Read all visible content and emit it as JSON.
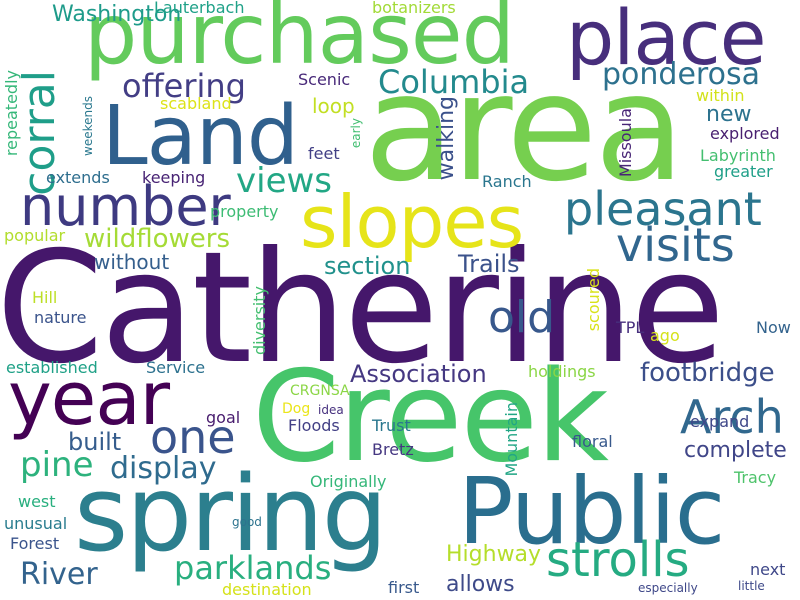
{
  "words": [
    {
      "text": "Catherine",
      "color": "#45176b"
    },
    {
      "text": "Creek",
      "color": "#46c56a"
    },
    {
      "text": "area",
      "color": "#76cf4f"
    },
    {
      "text": "spring",
      "color": "#2c7f8e"
    },
    {
      "text": "Public",
      "color": "#2a6e8e"
    },
    {
      "text": "purchased",
      "color": "#63cb5c"
    },
    {
      "text": "place",
      "color": "#472e7c"
    },
    {
      "text": "Land",
      "color": "#30608d"
    },
    {
      "text": "year",
      "color": "#440154"
    },
    {
      "text": "slopes",
      "color": "#e6e419"
    },
    {
      "text": "number",
      "color": "#3e3a81"
    },
    {
      "text": "pleasant",
      "color": "#2b758e"
    },
    {
      "text": "visits",
      "color": "#31668e"
    },
    {
      "text": "strolls",
      "color": "#25ab82"
    },
    {
      "text": "corral",
      "color": "#1f9e89"
    },
    {
      "text": "Arch",
      "color": "#31688e"
    },
    {
      "text": "one",
      "color": "#3a548c"
    },
    {
      "text": "Columbia",
      "color": "#238a8d"
    },
    {
      "text": "offering",
      "color": "#433e85"
    },
    {
      "text": "ponderosa",
      "color": "#2d718e"
    },
    {
      "text": "views",
      "color": "#22a785"
    },
    {
      "text": "wildflowers",
      "color": "#a5db36"
    },
    {
      "text": "pine",
      "color": "#2db27d"
    },
    {
      "text": "display",
      "color": "#2f6b8e"
    },
    {
      "text": "parklands",
      "color": "#29af7f"
    },
    {
      "text": "old",
      "color": "#38588c"
    },
    {
      "text": "footbridge",
      "color": "#3c4f8a"
    },
    {
      "text": "Association",
      "color": "#453882"
    },
    {
      "text": "River",
      "color": "#33638d"
    },
    {
      "text": "Trails",
      "color": "#3b528b"
    },
    {
      "text": "section",
      "color": "#21918c"
    },
    {
      "text": "built",
      "color": "#365d8d"
    },
    {
      "text": "complete",
      "color": "#404688"
    },
    {
      "text": "Washington",
      "color": "#1e9b8a"
    },
    {
      "text": "Highway",
      "color": "#b5de2b"
    },
    {
      "text": "allows",
      "color": "#3e4a89"
    },
    {
      "text": "new",
      "color": "#2c728e"
    },
    {
      "text": "walking",
      "color": "#3b518b"
    },
    {
      "text": "without",
      "color": "#355f8d"
    },
    {
      "text": "explored",
      "color": "#481f70"
    },
    {
      "text": "Labyrinth",
      "color": "#44bf70"
    },
    {
      "text": "loop",
      "color": "#c2df23"
    },
    {
      "text": "greater",
      "color": "#1f9f88"
    },
    {
      "text": "Missoula",
      "color": "#482576"
    },
    {
      "text": "Lauterbach",
      "color": "#1fa188"
    },
    {
      "text": "botanizers",
      "color": "#a2da37"
    },
    {
      "text": "Scenic",
      "color": "#482979"
    },
    {
      "text": "scabland",
      "color": "#dde318"
    },
    {
      "text": "within",
      "color": "#d2e21b"
    },
    {
      "text": "repeatedly",
      "color": "#35b779"
    },
    {
      "text": "weekends",
      "color": "#2a788e"
    },
    {
      "text": "early",
      "color": "#42be71"
    },
    {
      "text": "extends",
      "color": "#2e6e8e"
    },
    {
      "text": "keeping",
      "color": "#482374"
    },
    {
      "text": "feet",
      "color": "#424086"
    },
    {
      "text": "Ranch",
      "color": "#2a768e"
    },
    {
      "text": "property",
      "color": "#3dbc74"
    },
    {
      "text": "popular",
      "color": "#b2dd2d"
    },
    {
      "text": "diversity",
      "color": "#44bf70"
    },
    {
      "text": "scoured",
      "color": "#d8e219"
    },
    {
      "text": "Hill",
      "color": "#bddf26"
    },
    {
      "text": "nature",
      "color": "#3a538b"
    },
    {
      "text": "TPL",
      "color": "#472f7d"
    },
    {
      "text": "ago",
      "color": "#d5e21a"
    },
    {
      "text": "Now",
      "color": "#33638d"
    },
    {
      "text": "established",
      "color": "#1fa187"
    },
    {
      "text": "Service",
      "color": "#2c718e"
    },
    {
      "text": "holdings",
      "color": "#8bd646"
    },
    {
      "text": "CRGNSA",
      "color": "#8bd646"
    },
    {
      "text": "Dog",
      "color": "#eae51a"
    },
    {
      "text": "idea",
      "color": "#46307e"
    },
    {
      "text": "goal",
      "color": "#481c6e"
    },
    {
      "text": "expand",
      "color": "#3f4788"
    },
    {
      "text": "Floods",
      "color": "#423f85"
    },
    {
      "text": "Trust",
      "color": "#2a778e"
    },
    {
      "text": "Mountain",
      "color": "#21a685"
    },
    {
      "text": "Bretz",
      "color": "#453781"
    },
    {
      "text": "floral",
      "color": "#38598c"
    },
    {
      "text": "Originally",
      "color": "#35b779"
    },
    {
      "text": "Tracy",
      "color": "#4ec36b"
    },
    {
      "text": "west",
      "color": "#29af7f"
    },
    {
      "text": "unusual",
      "color": "#287c8e"
    },
    {
      "text": "good",
      "color": "#2c738e"
    },
    {
      "text": "Forest",
      "color": "#3a548c"
    },
    {
      "text": "next",
      "color": "#3f4889"
    },
    {
      "text": "first",
      "color": "#38598c"
    },
    {
      "text": "especially",
      "color": "#3f4889"
    },
    {
      "text": "little",
      "color": "#3e4989"
    },
    {
      "text": "destination",
      "color": "#d5e21a"
    }
  ]
}
